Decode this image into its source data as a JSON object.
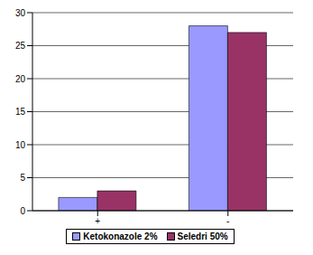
{
  "chart_data": {
    "type": "bar",
    "categories": [
      "+",
      "-"
    ],
    "series": [
      {
        "name": "Ketokonazole 2%",
        "color": "#9999ff",
        "values": [
          2,
          28
        ]
      },
      {
        "name": "Seledri 50%",
        "color": "#993366",
        "values": [
          3,
          27
        ]
      }
    ],
    "ylim": [
      0,
      30
    ],
    "yticks": [
      0,
      5,
      10,
      15,
      20,
      25,
      30
    ],
    "grid": true,
    "legend": "bottom"
  }
}
